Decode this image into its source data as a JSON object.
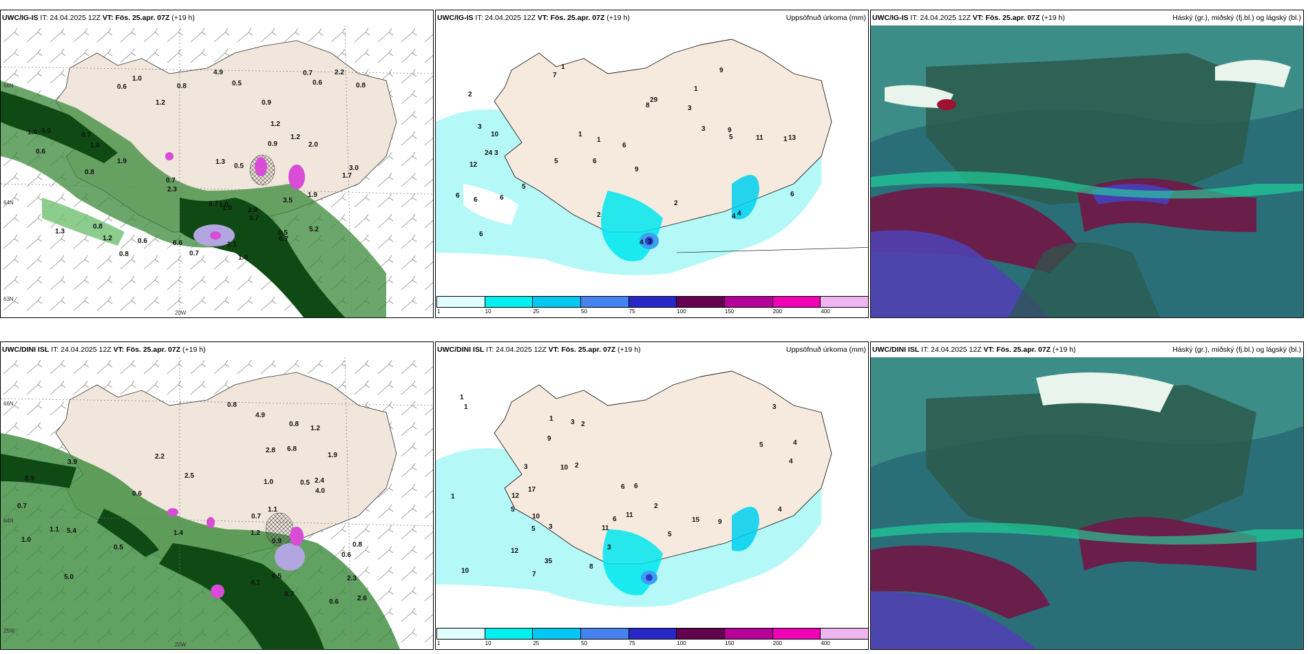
{
  "rows": [
    {
      "panels": [
        {
          "model": "UWC/IG-IS",
          "it": "IT: 24.04.2025 12Z",
          "vt": "VT: Fös. 25.apr. 07Z",
          "lead": "(+19 h)",
          "right": ""
        },
        {
          "model": "UWC/IG-IS",
          "it": "IT: 24.04.2025 12Z",
          "vt": "VT: Fös. 25.apr. 07Z",
          "lead": "(+19 h)",
          "right": "Uppsöfnuð úrkoma (mm)"
        },
        {
          "model": "UWC/IG-IS",
          "it": "IT: 24.04.2025 12Z",
          "vt": "VT: Fös. 25.apr. 07Z",
          "lead": "(+19 h)",
          "right": "Háský (gr.), miðský (fj.bl.) og lágský (bl.)"
        }
      ]
    },
    {
      "panels": [
        {
          "model": "UWC/DINI ISL",
          "it": "IT: 24.04.2025 12Z",
          "vt": "VT: Fös. 25.apr. 07Z",
          "lead": "(+19 h)",
          "right": ""
        },
        {
          "model": "UWC/DINI ISL",
          "it": "IT: 24.04.2025 12Z",
          "vt": "VT: Fös. 25.apr. 07Z",
          "lead": "(+19 h)",
          "right": "Uppsöfnuð úrkoma (mm)"
        },
        {
          "model": "UWC/DINI ISL",
          "it": "IT: 24.04.2025 12Z",
          "vt": "VT: Fös. 25.apr. 07Z",
          "lead": "(+19 h)",
          "right": "Háský (gr.), miðský (fj.bl.) og lágský (bl.)"
        }
      ]
    }
  ],
  "axis_labels": {
    "lat66": "66N",
    "lat64": "64N",
    "lat63": "63N",
    "lon20": "20W",
    "lon25": "25W"
  },
  "colorbar": {
    "ticks": [
      "1",
      "10",
      "25",
      "50",
      "75",
      "100",
      "150",
      "200",
      "400"
    ],
    "colors": [
      "#e0ffff",
      "#00f0f0",
      "#00c8f0",
      "#4682f0",
      "#2828c8",
      "#640050",
      "#b40096",
      "#f000b4",
      "#f0b4f0"
    ]
  },
  "wind_precip_top": [
    "1.0",
    "0.6",
    "0.8",
    "0.7",
    "1.2",
    "2.1",
    "1.7",
    "1.9",
    "2.3",
    "1.2",
    "1.3",
    "1.0",
    "0.7",
    "1.0",
    "0.9",
    "0.7",
    "0.6",
    "0.6",
    "3.5",
    "2.0",
    "0.5",
    "1.0",
    "0.8",
    "0.7",
    "0.5",
    "1.2",
    "0.8",
    "1.0",
    "0.7",
    "1.2",
    "0.7",
    "2.2",
    "0.9",
    "0.6",
    "1.0",
    "6.6",
    "4.9",
    "5.0",
    "3.0",
    "2.9",
    "0.8",
    "1.3",
    "0.8",
    "5.2",
    "0.5",
    "1.9",
    "0.7"
  ],
  "wind_precip_bottom": [
    "1.2",
    "0.8",
    "0.5",
    "0.6",
    "4.1",
    "6.8",
    "2.4",
    "2.5",
    "2.3",
    "0.7",
    "1.1",
    "0.7",
    "1.0",
    "0.9",
    "0.5",
    "0.6",
    "1.2",
    "1.1",
    "0.8",
    "2.2",
    "1.4",
    "0.7",
    "1.0",
    "4.9",
    "4.0",
    "5.0",
    "3.9",
    "2.8",
    "2.6",
    "5.4",
    "1.9",
    "0.8",
    "0.9",
    "0.5",
    "0.6"
  ],
  "precip_top": [
    "1",
    "1",
    "1",
    "6",
    "9",
    "3",
    "2",
    "3",
    "12",
    "8",
    "6",
    "6",
    "7",
    "5",
    "4",
    "3",
    "2",
    "9",
    "3",
    "5",
    "10",
    "24",
    "13",
    "11",
    "6",
    "3",
    "1",
    "5",
    "4",
    "6",
    "4",
    "29",
    "6",
    "1",
    "2",
    "6",
    "9"
  ],
  "precip_bottom": [
    "1",
    "1",
    "1",
    "3",
    "4",
    "5",
    "2",
    "3",
    "10",
    "15",
    "5",
    "6",
    "7",
    "5",
    "6",
    "10",
    "11",
    "12",
    "9",
    "2",
    "4",
    "3",
    "35",
    "17",
    "12",
    "11",
    "10",
    "9",
    "8",
    "3",
    "2",
    "1",
    "5",
    "4",
    "6",
    "3"
  ]
}
